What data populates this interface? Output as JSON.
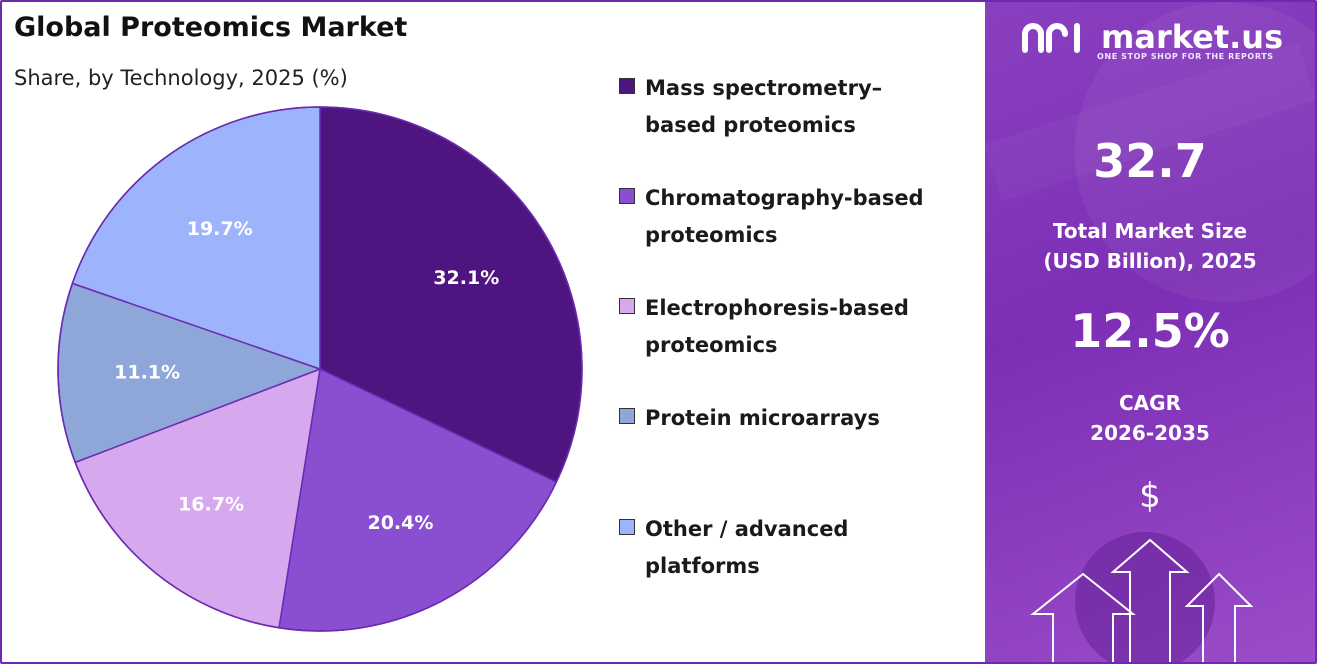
{
  "title": "Global Proteomics Market",
  "subtitle": "Share, by Technology, 2025 (%)",
  "chart_data": {
    "type": "pie",
    "categories": [
      "Mass spectrometry–based proteomics",
      "Chromatography-based proteomics",
      "Electrophoresis-based proteomics",
      "Protein microarrays",
      "Other / advanced platforms"
    ],
    "values": [
      32.1,
      20.4,
      16.7,
      11.1,
      19.7
    ],
    "value_labels": [
      "32.1%",
      "20.4%",
      "16.7%",
      "11.1%",
      "19.7%"
    ],
    "colors": [
      "#4e1580",
      "#8a4fd0",
      "#d6a8ee",
      "#8ea6d8",
      "#9db4fc"
    ],
    "legend_placement": "right",
    "start_angle": "12 o'clock, clockwise"
  },
  "legend": [
    {
      "label": "Mass spectrometry–\nbased proteomics",
      "color": "#4e1580"
    },
    {
      "label": "Chromatography-based\nproteomics",
      "color": "#8a4fd0"
    },
    {
      "label": "Electrophoresis-based\nproteomics",
      "color": "#d6a8ee"
    },
    {
      "label": "Protein microarrays",
      "color": "#8ea6d8"
    },
    {
      "label": "Other / advanced\nplatforms",
      "color": "#9db4fc"
    }
  ],
  "panel": {
    "brand": "market.us",
    "tagline": "ONE STOP SHOP FOR THE REPORTS",
    "market_size_value": "32.7",
    "market_size_label": "Total Market Size\n(USD Billion), 2025",
    "cagr_value": "12.5%",
    "cagr_label": "CAGR\n2026-2035",
    "currency_symbol": "$",
    "decor_icons": [
      "up-arrow-icon",
      "up-arrow-icon",
      "up-arrow-icon"
    ],
    "background_color": "#7c2fb5"
  }
}
